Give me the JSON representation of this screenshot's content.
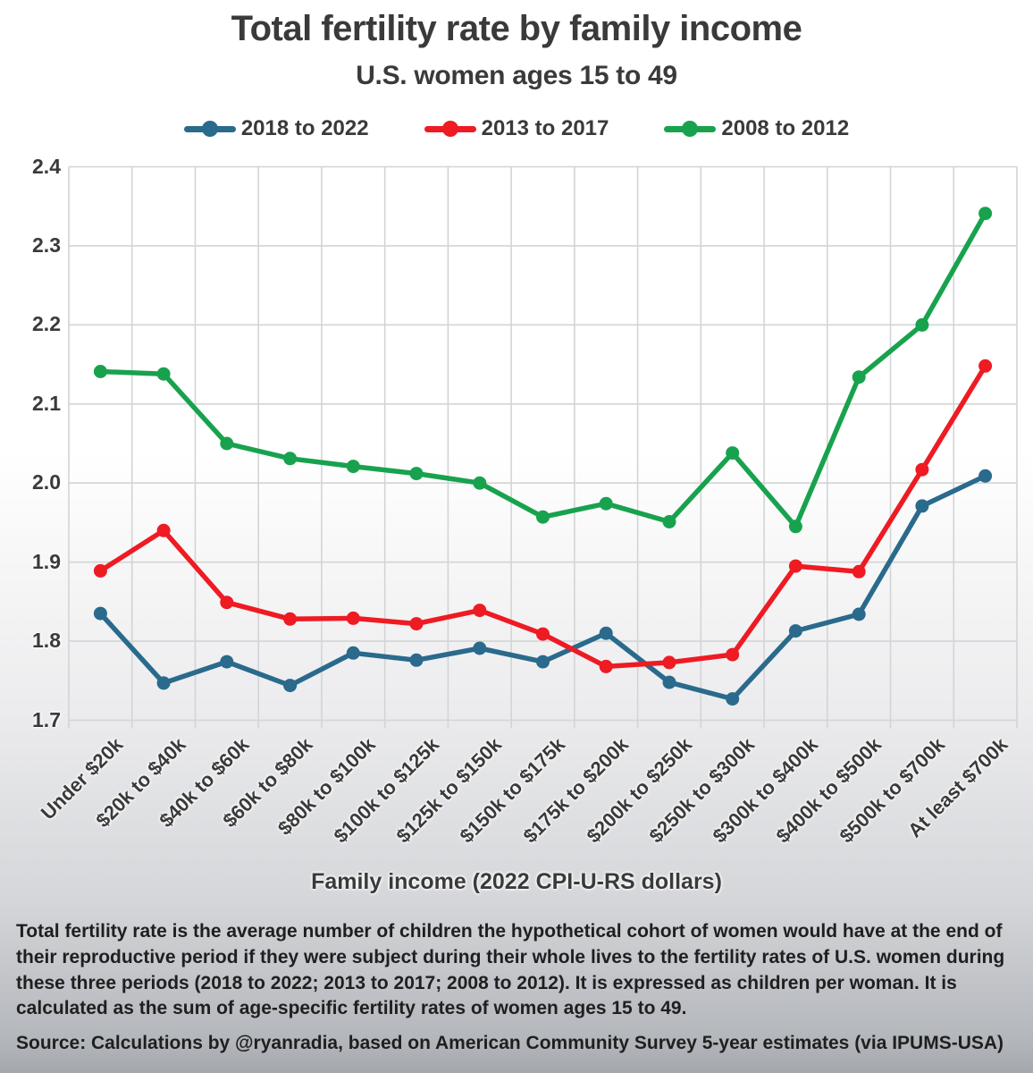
{
  "title": "Total fertility rate by family income",
  "subtitle": "U.S. women ages 15 to 49",
  "legend": [
    {
      "label": "2018 to 2022",
      "color": "#2a6a8c"
    },
    {
      "label": "2013 to 2017",
      "color": "#ee1b23"
    },
    {
      "label": "2008 to 2012",
      "color": "#18a24e"
    }
  ],
  "chart_data": {
    "type": "line",
    "title": "Total fertility rate by family income",
    "subtitle": "U.S. women ages 15 to 49",
    "categories": [
      "Under $20k",
      "$20k to $40k",
      "$40k to $60k",
      "$60k to $80k",
      "$80k to $100k",
      "$100k to $125k",
      "$125k to $150k",
      "$150k to $175k",
      "$175k to $200k",
      "$200k to $250k",
      "$250k to $300k",
      "$300k to $400k",
      "$400k to $500k",
      "$500k to $700k",
      "At least $700k"
    ],
    "series": [
      {
        "name": "2018 to 2022",
        "color": "#2a6a8c",
        "values": [
          1.835,
          1.747,
          1.774,
          1.744,
          1.785,
          1.776,
          1.791,
          1.774,
          1.81,
          1.748,
          1.727,
          1.813,
          1.834,
          1.971,
          2.009
        ]
      },
      {
        "name": "2013 to 2017",
        "color": "#ee1b23",
        "values": [
          1.889,
          1.94,
          1.849,
          1.828,
          1.829,
          1.822,
          1.839,
          1.809,
          1.768,
          1.773,
          1.783,
          1.895,
          1.888,
          2.017,
          2.148
        ]
      },
      {
        "name": "2008 to 2012",
        "color": "#18a24e",
        "values": [
          2.141,
          2.138,
          2.05,
          2.031,
          2.021,
          2.012,
          2.0,
          1.957,
          1.974,
          1.951,
          2.038,
          1.945,
          2.134,
          2.2,
          2.341
        ]
      }
    ],
    "xlabel": "Family income (2022 CPI-U-RS dollars)",
    "ylabel": "",
    "ylim": [
      1.7,
      2.4
    ],
    "yticks": [
      "2.4",
      "2.3",
      "2.2",
      "2.1",
      "2.0",
      "1.9",
      "1.8",
      "1.7"
    ],
    "ytick_step": 0.1,
    "grid": true,
    "legend_position": "top",
    "gridline_color": "#d3d4d6"
  },
  "footnote": "Total fertility rate is the average number of children the hypothetical cohort of women would have at the end of their reproductive period if they were subject during their whole lives to the fertility rates of U.S. women during these three periods (2018 to 2022; 2013 to 2017; 2008 to 2012). It is expressed as children per woman. It is calculated as the sum of age-specific fertility rates of women ages 15 to 49.",
  "source": "Source: Calculations by @ryanradia, based on American Community Survey 5-year estimates (via IPUMS-USA)"
}
